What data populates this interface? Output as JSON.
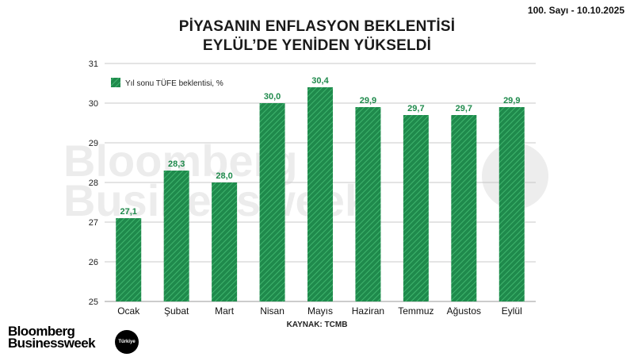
{
  "issue": "100. Sayı - 10.10.2025",
  "title_line1": "PİYASANIN ENFLASYON BEKLENTİSİ",
  "title_line2": "EYLÜL’DE YENİDEN YÜKSELDİ",
  "source": "KAYNAK: TCMB",
  "brand": {
    "line1": "Bloomberg",
    "line2": "Businessweek",
    "badge": "Türkiye"
  },
  "colors": {
    "bar": "#1f8a4c",
    "bar_hatch": "#3fb56e",
    "label": "#1f8a4c",
    "grid": "#c8c8c8"
  },
  "chart_data": {
    "type": "bar",
    "title": "PİYASANIN ENFLASYON BEKLENTİSİ EYLÜL’DE YENİDEN YÜKSELDİ",
    "categories": [
      "Ocak",
      "Şubat",
      "Mart",
      "Nisan",
      "Mayıs",
      "Haziran",
      "Temmuz",
      "Ağustos",
      "Eylül"
    ],
    "series": [
      {
        "name": "Yıl sonu TÜFE beklentisi, %",
        "values": [
          27.1,
          28.3,
          28.0,
          30.0,
          30.4,
          29.9,
          29.7,
          29.7,
          29.9
        ],
        "labels": [
          "27,1",
          "28,3",
          "28,0",
          "30,0",
          "30,4",
          "29,9",
          "29,7",
          "29,7",
          "29,9"
        ]
      }
    ],
    "ylim": [
      25,
      31
    ],
    "yticks": [
      25,
      26,
      27,
      28,
      29,
      30,
      31
    ],
    "grid": true,
    "legend": "top-left"
  }
}
